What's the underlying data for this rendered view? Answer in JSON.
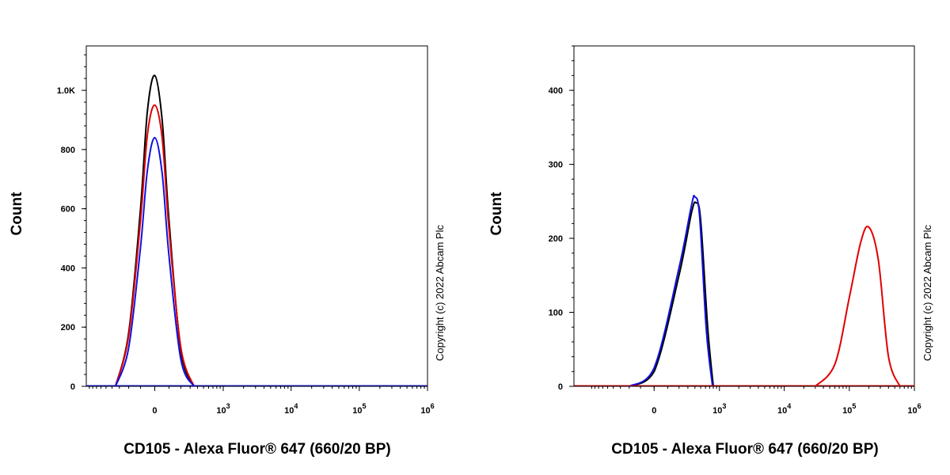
{
  "chart_data": [
    {
      "type": "line",
      "title": "",
      "xlabel": "CD105 - Alexa Fluor® 647 (660/20 BP)",
      "ylabel": "Count",
      "x_scale": "biexponential",
      "ylim": [
        0,
        1150
      ],
      "y_ticks": [
        {
          "value": 0,
          "label": "0"
        },
        {
          "value": 200,
          "label": "200"
        },
        {
          "value": 400,
          "label": "400"
        },
        {
          "value": 600,
          "label": "600"
        },
        {
          "value": 800,
          "label": "800"
        },
        {
          "value": 1000,
          "label": "1.0K"
        }
      ],
      "x_ticks": [
        {
          "value": 0,
          "label": "0"
        },
        {
          "value": 1000,
          "label": "10^3"
        },
        {
          "value": 10000,
          "label": "10^4"
        },
        {
          "value": 100000,
          "label": "10^5"
        },
        {
          "value": 1000000,
          "label": "10^6"
        }
      ],
      "copyright": "Copyright (c) 2022 Abcam Plc",
      "series": [
        {
          "color": "#000000",
          "peak_x": 0,
          "peak_y": 1050,
          "x": [
            -350,
            -200,
            -100,
            -50,
            0,
            50,
            100,
            200,
            350
          ],
          "y": [
            0,
            180,
            600,
            930,
            1050,
            900,
            560,
            120,
            0
          ]
        },
        {
          "color": "#e00000",
          "peak_x": 0,
          "peak_y": 950,
          "x": [
            -350,
            -200,
            -100,
            -50,
            0,
            50,
            100,
            200,
            350
          ],
          "y": [
            0,
            170,
            560,
            850,
            950,
            840,
            530,
            130,
            0
          ]
        },
        {
          "color": "#1010e0",
          "peak_x": 0,
          "peak_y": 840,
          "x": [
            -350,
            -200,
            -100,
            -50,
            0,
            50,
            100,
            200,
            350
          ],
          "y": [
            0,
            130,
            470,
            730,
            840,
            720,
            440,
            90,
            0
          ]
        }
      ]
    },
    {
      "type": "line",
      "title": "",
      "xlabel": "CD105 - Alexa Fluor® 647 (660/20 BP)",
      "ylabel": "Count",
      "x_scale": "biexponential",
      "ylim": [
        0,
        460
      ],
      "y_ticks": [
        {
          "value": 0,
          "label": "0"
        },
        {
          "value": 100,
          "label": "100"
        },
        {
          "value": 200,
          "label": "200"
        },
        {
          "value": 300,
          "label": "300"
        },
        {
          "value": 400,
          "label": "400"
        }
      ],
      "x_ticks": [
        {
          "value": 0,
          "label": "0"
        },
        {
          "value": 1000,
          "label": "10^3"
        },
        {
          "value": 10000,
          "label": "10^4"
        },
        {
          "value": 100000,
          "label": "10^5"
        },
        {
          "value": 1000000,
          "label": "10^6"
        }
      ],
      "copyright": "Copyright (c) 2022 Abcam Plc",
      "series": [
        {
          "color": "#000000",
          "peak_x": 420,
          "peak_y": 248,
          "x": [
            -200,
            0,
            200,
            350,
            420,
            500,
            650,
            800
          ],
          "y": [
            0,
            20,
            150,
            235,
            248,
            225,
            80,
            0
          ]
        },
        {
          "color": "#1010e0",
          "peak_x": 400,
          "peak_y": 256,
          "x": [
            -200,
            0,
            200,
            350,
            400,
            480,
            620,
            780
          ],
          "y": [
            0,
            25,
            160,
            245,
            256,
            230,
            75,
            0
          ]
        },
        {
          "color": "#e00000",
          "peak_x": 200000,
          "peak_y": 215,
          "x": [
            30000,
            60000,
            100000,
            150000,
            200000,
            280000,
            400000,
            600000
          ],
          "y": [
            0,
            30,
            120,
            195,
            215,
            170,
            40,
            0
          ]
        }
      ]
    }
  ]
}
